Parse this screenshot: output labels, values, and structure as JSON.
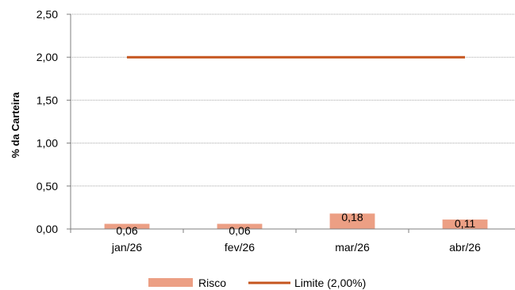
{
  "chart_data": {
    "type": "bar",
    "categories": [
      "jan/26",
      "fev/26",
      "mar/26",
      "abr/26"
    ],
    "series": [
      {
        "name": "Risco",
        "kind": "bar",
        "values": [
          0.06,
          0.06,
          0.18,
          0.11
        ],
        "labels": [
          "0,06",
          "0,06",
          "0,18",
          "0,11"
        ],
        "color": "#EC9F84"
      },
      {
        "name": "Limite (2,00%)",
        "kind": "line",
        "values": [
          2.0,
          2.0,
          2.0,
          2.0
        ],
        "color": "#C5551E"
      }
    ],
    "ylabel": "% da Carteira",
    "ylim": [
      0,
      2.5
    ],
    "yticks": [
      0,
      0.5,
      1.0,
      1.5,
      2.0,
      2.5
    ],
    "ytick_labels": [
      "0,00",
      "0,50",
      "1,00",
      "1,50",
      "2,00",
      "2,50"
    ],
    "grid": true,
    "legend": "bottom"
  }
}
